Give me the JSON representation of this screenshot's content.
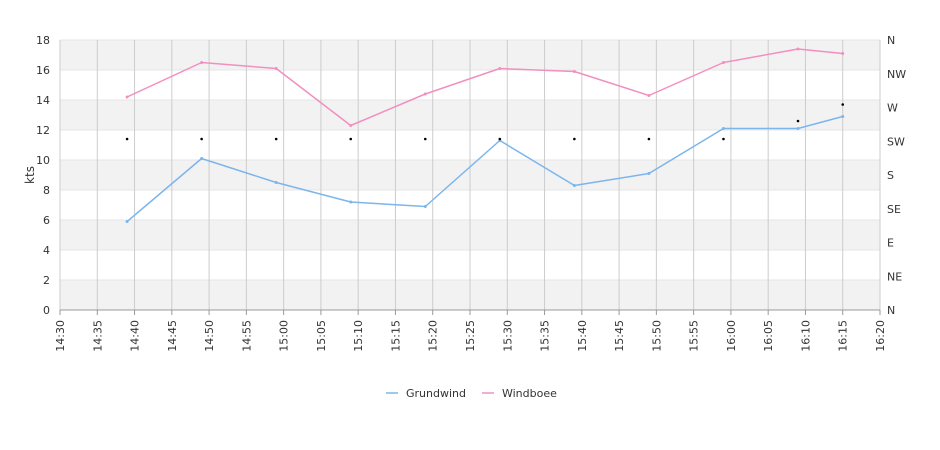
{
  "chart_data": {
    "type": "line",
    "ylabel": "kts",
    "ylim": [
      0,
      18
    ],
    "y_ticks": [
      0,
      2,
      4,
      6,
      8,
      10,
      12,
      14,
      16,
      18
    ],
    "xlim": [
      "14:30",
      "16:20"
    ],
    "x_ticks": [
      "14:30",
      "14:35",
      "14:40",
      "14:45",
      "14:50",
      "14:55",
      "15:00",
      "15:05",
      "15:10",
      "15:15",
      "15:20",
      "15:25",
      "15:30",
      "15:35",
      "15:40",
      "15:45",
      "15:50",
      "15:55",
      "16:00",
      "16:05",
      "16:10",
      "16:15",
      "16:20"
    ],
    "right_axis_labels": [
      "N",
      "NE",
      "E",
      "SE",
      "S",
      "SW",
      "W",
      "NW",
      "N"
    ],
    "grid": true,
    "alternating_bands": true,
    "legend_position": "bottom-center",
    "series": [
      {
        "name": "Grundwind",
        "color": "#7cb5ec",
        "x": [
          "14:39",
          "14:49",
          "14:59",
          "15:09",
          "15:19",
          "15:29",
          "15:39",
          "15:49",
          "15:59",
          "16:09",
          "16:15"
        ],
        "values": [
          5.9,
          10.1,
          8.5,
          7.2,
          6.9,
          11.3,
          8.3,
          9.1,
          12.1,
          12.1,
          12.9
        ]
      },
      {
        "name": "Windboee",
        "color": "#f28fc0",
        "x": [
          "14:39",
          "14:49",
          "14:59",
          "15:09",
          "15:19",
          "15:29",
          "15:39",
          "15:49",
          "15:59",
          "16:09",
          "16:15"
        ],
        "values": [
          14.2,
          16.5,
          16.1,
          12.3,
          14.4,
          16.1,
          15.9,
          14.3,
          16.5,
          17.4,
          17.1
        ]
      }
    ],
    "direction_points": {
      "color": "#000000",
      "x": [
        "14:39",
        "14:49",
        "14:59",
        "15:09",
        "15:19",
        "15:29",
        "15:39",
        "15:49",
        "15:59",
        "16:09",
        "16:15"
      ],
      "values": [
        11.4,
        11.4,
        11.4,
        11.4,
        11.4,
        11.4,
        11.4,
        11.4,
        11.4,
        12.6,
        13.7
      ]
    }
  }
}
